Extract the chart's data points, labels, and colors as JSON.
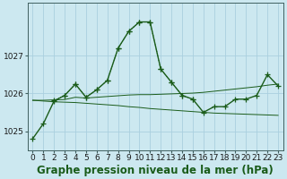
{
  "background_color": "#cce8f0",
  "grid_color": "#aacfdf",
  "line_color": "#1a5c1a",
  "title": "Graphe pression niveau de la mer (hPa)",
  "xlim": [
    -0.5,
    23.5
  ],
  "ylim": [
    1024.5,
    1028.4
  ],
  "yticks": [
    1025,
    1026,
    1027
  ],
  "xticks": [
    0,
    1,
    2,
    3,
    4,
    5,
    6,
    7,
    8,
    9,
    10,
    11,
    12,
    13,
    14,
    15,
    16,
    17,
    18,
    19,
    20,
    21,
    22,
    23
  ],
  "s1_x": [
    0,
    1,
    2,
    3,
    4,
    5,
    6,
    7,
    8,
    9,
    10,
    11,
    12,
    13,
    14,
    15,
    16,
    17,
    18,
    19,
    20,
    21,
    22,
    23
  ],
  "s1_y": [
    1024.8,
    1025.2,
    1025.8,
    1025.95,
    1026.25,
    1025.9,
    1026.1,
    1026.35,
    1027.2,
    1027.65,
    1027.9,
    1027.9,
    1026.65,
    1026.3,
    1025.95,
    1025.85,
    1025.5,
    1025.65,
    1025.65,
    1025.85,
    1025.85,
    1025.95,
    1026.5,
    1026.2
  ],
  "s2_x": [
    0,
    1,
    2,
    3,
    4,
    5,
    6,
    7,
    8,
    9,
    10,
    11,
    12,
    13,
    14,
    15,
    16,
    17,
    18,
    19,
    20,
    21,
    22,
    23
  ],
  "s2_y": [
    1025.82,
    1025.82,
    1025.83,
    1025.84,
    1025.9,
    1025.88,
    1025.9,
    1025.92,
    1025.94,
    1025.96,
    1025.97,
    1025.97,
    1025.98,
    1025.99,
    1026.0,
    1026.01,
    1026.03,
    1026.06,
    1026.09,
    1026.12,
    1026.15,
    1026.18,
    1026.22,
    1026.25
  ],
  "s3_x": [
    0,
    1,
    2,
    3,
    4,
    5,
    6,
    7,
    8,
    9,
    10,
    11,
    12,
    13,
    14,
    15,
    16,
    17,
    18,
    19,
    20,
    21,
    22,
    23
  ],
  "s3_y": [
    1025.82,
    1025.8,
    1025.78,
    1025.77,
    1025.76,
    1025.74,
    1025.72,
    1025.7,
    1025.68,
    1025.65,
    1025.63,
    1025.6,
    1025.58,
    1025.56,
    1025.54,
    1025.52,
    1025.5,
    1025.48,
    1025.47,
    1025.46,
    1025.45,
    1025.44,
    1025.43,
    1025.42
  ],
  "s4_x": [
    2,
    3,
    4,
    5,
    6,
    7,
    8,
    9,
    10,
    11,
    12,
    13,
    14,
    15
  ],
  "s4_y": [
    1025.82,
    1025.95,
    1026.25,
    1025.9,
    1026.1,
    1026.35,
    1027.2,
    1027.65,
    1027.9,
    1027.9,
    1026.65,
    1026.3,
    1025.95,
    1025.85
  ],
  "title_fontsize": 8.5,
  "tick_fontsize": 6.5
}
